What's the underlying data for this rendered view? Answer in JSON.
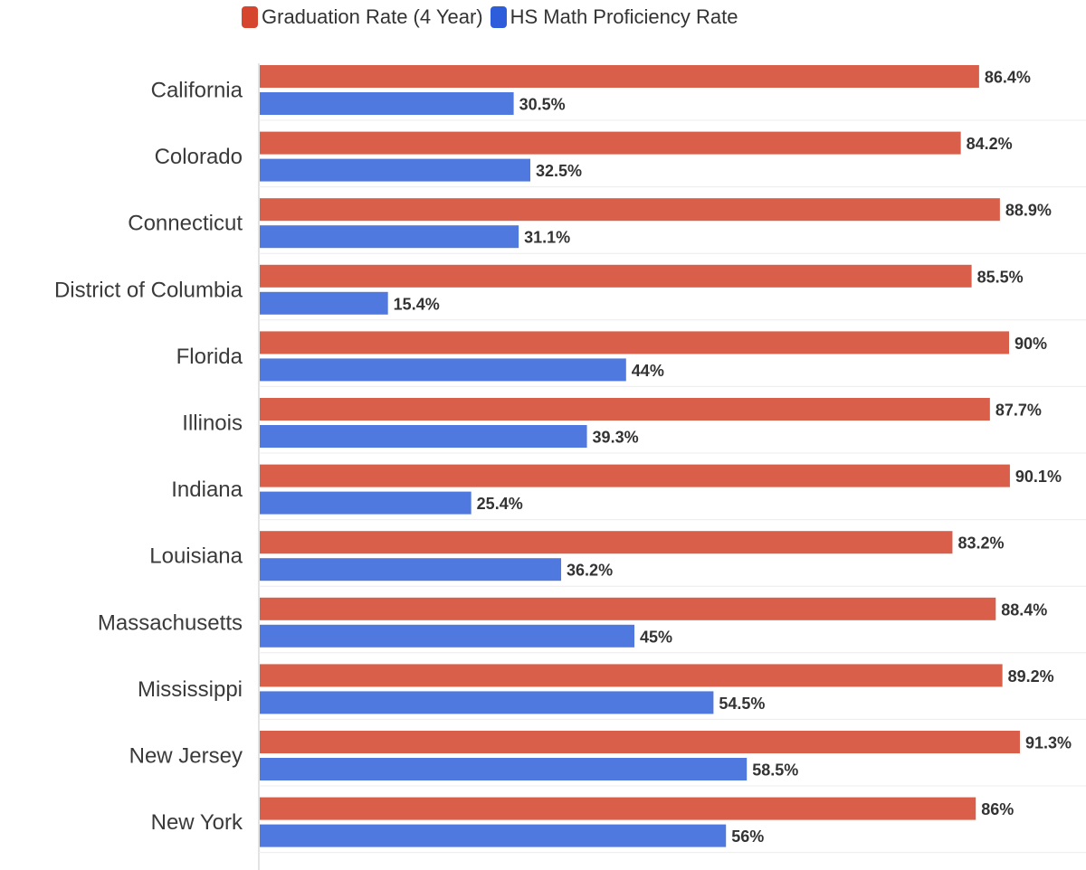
{
  "chart_data": {
    "type": "bar",
    "orientation": "horizontal",
    "title": "",
    "xlabel": "",
    "ylabel": "",
    "xlim": [
      0,
      105
    ],
    "legend_position": "top-left",
    "grid": true,
    "categories": [
      "California",
      "Colorado",
      "Connecticut",
      "District of Columbia",
      "Florida",
      "Illinois",
      "Indiana",
      "Louisiana",
      "Massachusetts",
      "Mississippi",
      "New Jersey",
      "New York"
    ],
    "series": [
      {
        "name": "Graduation Rate (4 Year)",
        "color": "#D95F4A",
        "legend_color": "#D6452E",
        "values": [
          86.4,
          84.2,
          88.9,
          85.5,
          90,
          87.7,
          90.1,
          83.2,
          88.4,
          89.2,
          91.3,
          86
        ],
        "labels": [
          "86.4%",
          "84.2%",
          "88.9%",
          "85.5%",
          "90%",
          "87.7%",
          "90.1%",
          "83.2%",
          "88.4%",
          "89.2%",
          "91.3%",
          "86%"
        ]
      },
      {
        "name": "HS Math Proficiency Rate",
        "color": "#5079E0",
        "legend_color": "#2E5DDB",
        "values": [
          30.5,
          32.5,
          31.1,
          15.4,
          44,
          39.3,
          25.4,
          36.2,
          45,
          54.5,
          58.5,
          56
        ],
        "labels": [
          "30.5%",
          "32.5%",
          "31.1%",
          "15.4%",
          "44%",
          "39.3%",
          "25.4%",
          "36.2%",
          "45%",
          "54.5%",
          "58.5%",
          "56%"
        ]
      }
    ]
  }
}
